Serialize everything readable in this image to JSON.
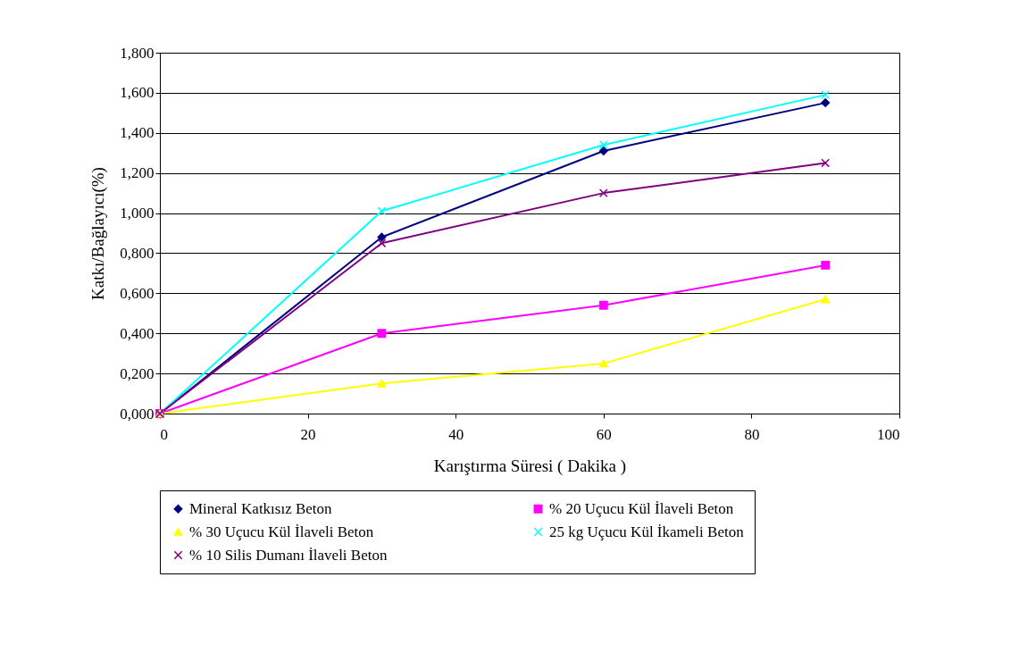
{
  "chart_data": {
    "type": "line",
    "xlabel": "Karıştırma Süresi ( Dakika )",
    "ylabel": "Katkı/Bağlayıcı(%)",
    "x": [
      0,
      30,
      60,
      90
    ],
    "series": [
      {
        "name": "Mineral Katkısız Beton",
        "color": "#000080",
        "marker": "diamond",
        "values": [
          0,
          0.88,
          1.31,
          1.55
        ]
      },
      {
        "name": "% 20 Uçucu Kül İlaveli Beton",
        "color": "#ff00ff",
        "marker": "square",
        "values": [
          0,
          0.4,
          0.54,
          0.74
        ]
      },
      {
        "name": "% 30 Uçucu Kül İlaveli Beton",
        "color": "#ffff00",
        "marker": "triangle",
        "values": [
          0,
          0.15,
          0.25,
          0.57
        ]
      },
      {
        "name": "25 kg Uçucu Kül İkameli Beton",
        "color": "#00ffff",
        "marker": "cross",
        "values": [
          0,
          1.01,
          1.34,
          1.59
        ]
      },
      {
        "name": "% 10 Silis Dumanı İlaveli Beton",
        "color": "#800080",
        "marker": "cross",
        "values": [
          0,
          0.85,
          1.1,
          1.25
        ]
      }
    ],
    "xlim": [
      0,
      100
    ],
    "xticks": [
      0,
      20,
      40,
      60,
      80,
      100
    ],
    "ylim": [
      0,
      1.8
    ],
    "yticks": [
      {
        "value": 0,
        "label": "0,000"
      },
      {
        "value": 0.2,
        "label": "0,200"
      },
      {
        "value": 0.4,
        "label": "0,400"
      },
      {
        "value": 0.6,
        "label": "0,600"
      },
      {
        "value": 0.8,
        "label": "0,800"
      },
      {
        "value": 1.0,
        "label": "1,000"
      },
      {
        "value": 1.2,
        "label": "1,200"
      },
      {
        "value": 1.4,
        "label": "1,400"
      },
      {
        "value": 1.6,
        "label": "1,600"
      },
      {
        "value": 1.8,
        "label": "1,800"
      }
    ],
    "grid": "y",
    "legend": "bottom",
    "line_style": "solid"
  }
}
